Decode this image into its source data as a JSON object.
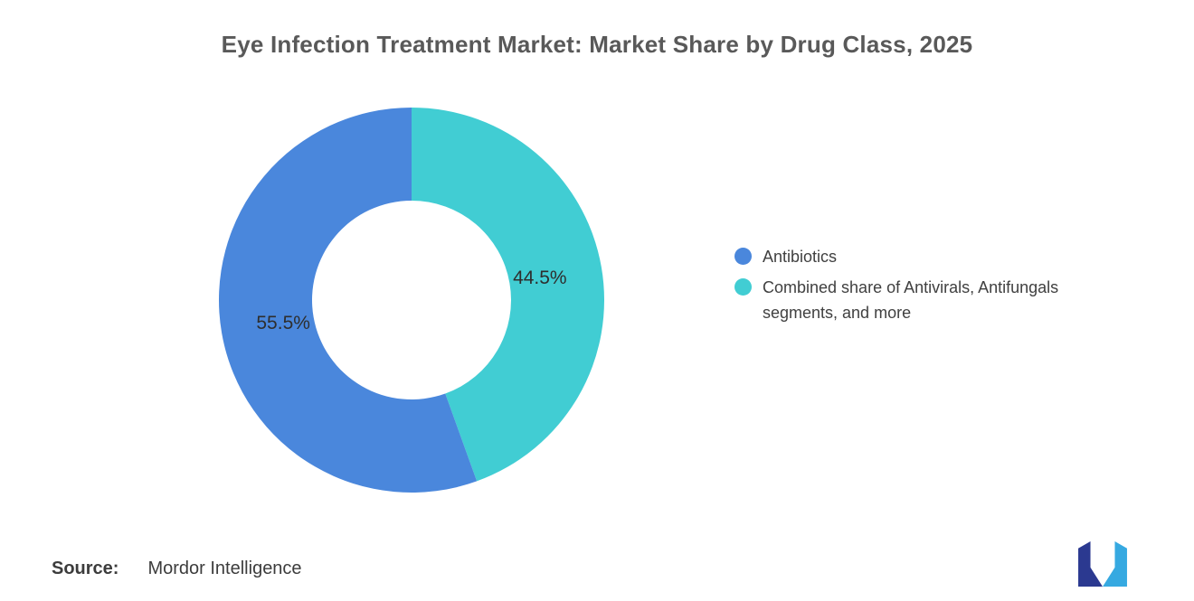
{
  "title": "Eye Infection Treatment Market: Market Share by Drug Class, 2025",
  "chart_data": {
    "type": "pie",
    "subtype": "donut",
    "title": "Eye Infection Treatment Market: Market Share by Drug Class, 2025",
    "unit": "%",
    "start_angle_deg": 0,
    "direction": "clockwise_from_top",
    "legend_position": "right",
    "segments": [
      {
        "label": "Antibiotics",
        "value": 55.5,
        "display": "55.5%",
        "color": "#4A87DC"
      },
      {
        "label": "Combined share of Antivirals, Antifungals segments, and more",
        "value": 44.5,
        "display": "44.5%",
        "color": "#41CDD3"
      }
    ]
  },
  "footer": {
    "source_label": "Source:",
    "source_value": "Mordor Intelligence"
  },
  "logo": {
    "name": "mordor-intelligence-logo",
    "color_dark": "#2B3990",
    "color_light": "#36A9E1"
  }
}
